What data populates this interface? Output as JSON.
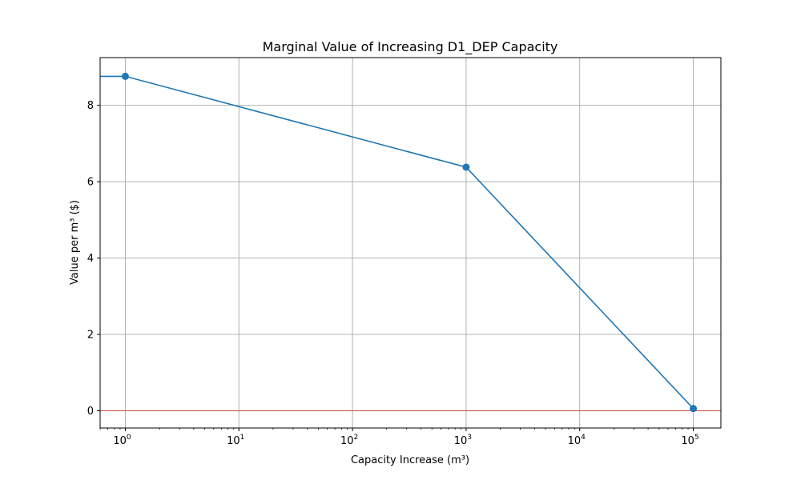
{
  "chart_data": {
    "type": "line",
    "title": "Marginal Value of Increasing D1_DEP Capacity",
    "xlabel": "Capacity Increase (m³)",
    "ylabel": "Value per m³ ($)",
    "x_scale": "log",
    "xlim": [
      0.6,
      175000
    ],
    "ylim": [
      -0.45,
      9.25
    ],
    "grid": true,
    "x_ticks": [
      {
        "value": 1,
        "base": "10",
        "exp": "0"
      },
      {
        "value": 10,
        "base": "10",
        "exp": "1"
      },
      {
        "value": 100,
        "base": "10",
        "exp": "2"
      },
      {
        "value": 1000,
        "base": "10",
        "exp": "3"
      },
      {
        "value": 10000,
        "base": "10",
        "exp": "4"
      },
      {
        "value": 100000,
        "base": "10",
        "exp": "5"
      }
    ],
    "y_ticks": [
      0,
      2,
      4,
      6,
      8
    ],
    "series": [
      {
        "color": "#1f77b4",
        "x": [
          0.001,
          1,
          1000,
          100000
        ],
        "y": [
          8.76,
          8.76,
          6.38,
          0.06
        ],
        "marker_x": [
          1,
          1000,
          100000
        ],
        "marker_y": [
          8.76,
          6.38,
          0.06
        ]
      }
    ],
    "reference_line": {
      "y": 0,
      "color": "#d62728"
    }
  }
}
